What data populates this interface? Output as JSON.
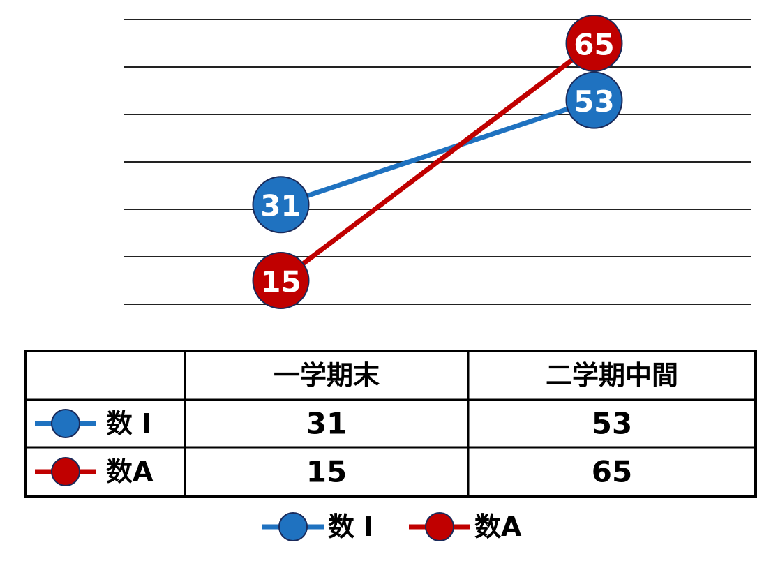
{
  "chart_data": {
    "type": "line",
    "categories": [
      "一学期末",
      "二学期中間"
    ],
    "series": [
      {
        "name": "数 I",
        "color": "#1f72c0",
        "values": [
          31,
          53
        ]
      },
      {
        "name": "数A",
        "color": "#c00000",
        "values": [
          15,
          65
        ]
      }
    ],
    "ylim": [
      10,
      70
    ],
    "yticks": [
      10,
      20,
      30,
      40,
      50,
      60,
      70
    ],
    "grid": true
  }
}
